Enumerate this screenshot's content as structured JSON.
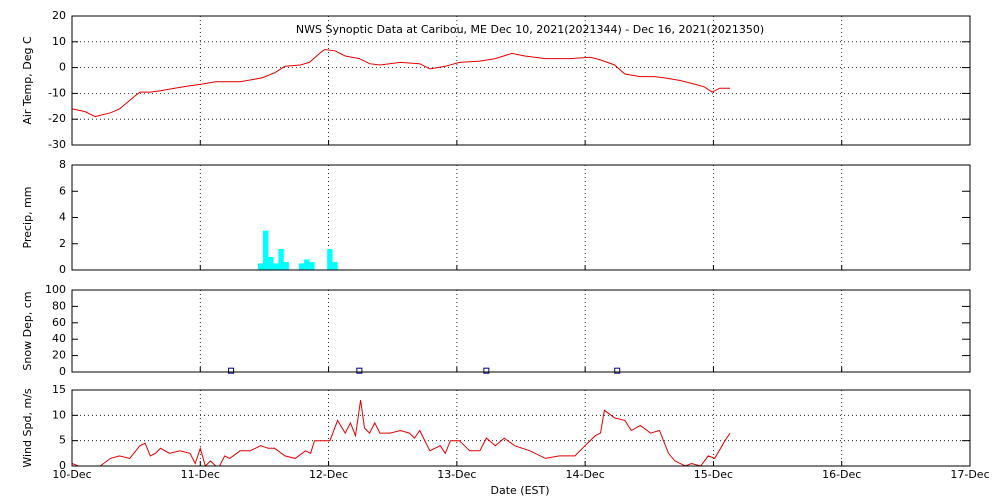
{
  "chart_data": [
    {
      "type": "line",
      "title": "NWS Synoptic Data at Caribou, ME   Dec 10, 2021(2021344) - Dec 16, 2021(2021350)",
      "y_label": "Air Temp, Deg C",
      "xlim": [
        0,
        7
      ],
      "xticks": [
        0,
        1,
        2,
        3,
        4,
        5,
        6,
        7
      ],
      "ylim": [
        -30,
        20
      ],
      "yticks": [
        -30,
        -20,
        -10,
        0,
        10,
        20
      ],
      "grid": true,
      "series": [
        {
          "color": "#e00000",
          "x": [
            0,
            0.1,
            0.18,
            0.3,
            0.37,
            0.49,
            0.53,
            0.61,
            0.69,
            0.8,
            0.92,
            1.0,
            1.12,
            1.31,
            1.48,
            1.58,
            1.66,
            1.78,
            1.85,
            1.93,
            1.97,
            2.05,
            2.13,
            2.24,
            2.32,
            2.4,
            2.56,
            2.71,
            2.79,
            2.91,
            3.02,
            3.18,
            3.3,
            3.43,
            3.53,
            3.69,
            3.88,
            4.04,
            4.12,
            4.23,
            4.31,
            4.43,
            4.54,
            4.62,
            4.74,
            4.86,
            4.93,
            4.99,
            5.05,
            5.13
          ],
          "values": [
            -16,
            -17,
            -19,
            -17.5,
            -16,
            -11,
            -9.5,
            -9.5,
            -9,
            -8,
            -7,
            -6.5,
            -5.5,
            -5.5,
            -4,
            -2,
            0.5,
            1,
            2,
            5.5,
            7,
            6.5,
            4.5,
            3.5,
            1.5,
            1,
            2,
            1.5,
            -0.5,
            0.5,
            2,
            2.5,
            3.5,
            5.5,
            4.5,
            3.5,
            3.5,
            4,
            3,
            1,
            -2.5,
            -3.5,
            -3.5,
            -4,
            -5,
            -6.5,
            -7.5,
            -9.5,
            -8,
            -8
          ]
        }
      ]
    },
    {
      "type": "bar",
      "y_label": "Precip, mm",
      "xlim": [
        0,
        7
      ],
      "xticks": [
        0,
        1,
        2,
        3,
        4,
        5,
        6,
        7
      ],
      "ylim": [
        0,
        8
      ],
      "yticks": [
        0,
        2,
        4,
        6,
        8
      ],
      "grid": false,
      "series": [
        {
          "color": "#00ffff",
          "x": [
            1.47,
            1.51,
            1.55,
            1.59,
            1.63,
            1.67,
            1.79,
            1.83,
            1.87,
            2.01,
            2.05
          ],
          "values": [
            0.5,
            3,
            1,
            0.5,
            1.6,
            0.6,
            0.5,
            0.8,
            0.6,
            1.6,
            0.6
          ]
        }
      ]
    },
    {
      "type": "scatter",
      "y_label": "Snow Dep, cm",
      "xlim": [
        0,
        7
      ],
      "xticks": [
        0,
        1,
        2,
        3,
        4,
        5,
        6,
        7
      ],
      "ylim": [
        0,
        100
      ],
      "yticks": [
        0,
        20,
        40,
        60,
        80,
        100
      ],
      "grid": false,
      "series": [
        {
          "color": "#000080",
          "x": [
            1.24,
            2.24,
            3.23,
            4.25
          ],
          "values": [
            1,
            1,
            1,
            1
          ]
        }
      ]
    },
    {
      "type": "line",
      "y_label": "Wind Spd, m/s",
      "x_label": "Date (EST)",
      "xlim": [
        0,
        7
      ],
      "xticks": [
        {
          "value": 0,
          "label": "10-Dec"
        },
        {
          "value": 1,
          "label": "11-Dec"
        },
        {
          "value": 2,
          "label": "12-Dec"
        },
        {
          "value": 3,
          "label": "13-Dec"
        },
        {
          "value": 4,
          "label": "14-Dec"
        },
        {
          "value": 5,
          "label": "15-Dec"
        },
        {
          "value": 6,
          "label": "16-Dec"
        },
        {
          "value": 7,
          "label": "17-Dec"
        }
      ],
      "ylim": [
        0,
        15
      ],
      "yticks": [
        0,
        5,
        10,
        15
      ],
      "grid": true,
      "series": [
        {
          "color": "#e00000",
          "x": [
            0,
            0.05,
            0.14,
            0.22,
            0.3,
            0.37,
            0.45,
            0.53,
            0.57,
            0.61,
            0.65,
            0.69,
            0.76,
            0.84,
            0.92,
            0.96,
            1.0,
            1.04,
            1.08,
            1.12,
            1.15,
            1.19,
            1.23,
            1.31,
            1.39,
            1.47,
            1.53,
            1.58,
            1.66,
            1.74,
            1.82,
            1.86,
            1.89,
            1.97,
            2.01,
            2.07,
            2.13,
            2.17,
            2.21,
            2.25,
            2.28,
            2.32,
            2.36,
            2.4,
            2.48,
            2.56,
            2.63,
            2.67,
            2.71,
            2.79,
            2.87,
            2.91,
            2.95,
            3.02,
            3.1,
            3.18,
            3.23,
            3.3,
            3.37,
            3.45,
            3.57,
            3.69,
            3.8,
            3.92,
            4.0,
            4.08,
            4.12,
            4.15,
            4.23,
            4.31,
            4.36,
            4.43,
            4.51,
            4.58,
            4.65,
            4.7,
            4.78,
            4.83,
            4.9,
            4.96,
            5.01,
            5.09,
            5.13
          ],
          "values": [
            0.5,
            0,
            0,
            0,
            1.5,
            2,
            1.5,
            4,
            4.5,
            2,
            2.5,
            3.5,
            2.5,
            3,
            2.5,
            0.5,
            3.5,
            0,
            1,
            0,
            0,
            2,
            1.5,
            3,
            3,
            4,
            3.5,
            3.5,
            2,
            1.5,
            3,
            2.5,
            5,
            5,
            5,
            9,
            6.5,
            8.5,
            6,
            13,
            7.5,
            6.5,
            8.5,
            6.5,
            6.5,
            7,
            6.5,
            5.5,
            7,
            3,
            4,
            2.5,
            5,
            5,
            3,
            3,
            5.5,
            4,
            5.5,
            4,
            3,
            1.5,
            2,
            2,
            4,
            6,
            6.5,
            11,
            9.5,
            9,
            7,
            8,
            6.5,
            7,
            2.5,
            1,
            0,
            0.5,
            0,
            2,
            1.5,
            5,
            6.5
          ]
        }
      ]
    }
  ]
}
